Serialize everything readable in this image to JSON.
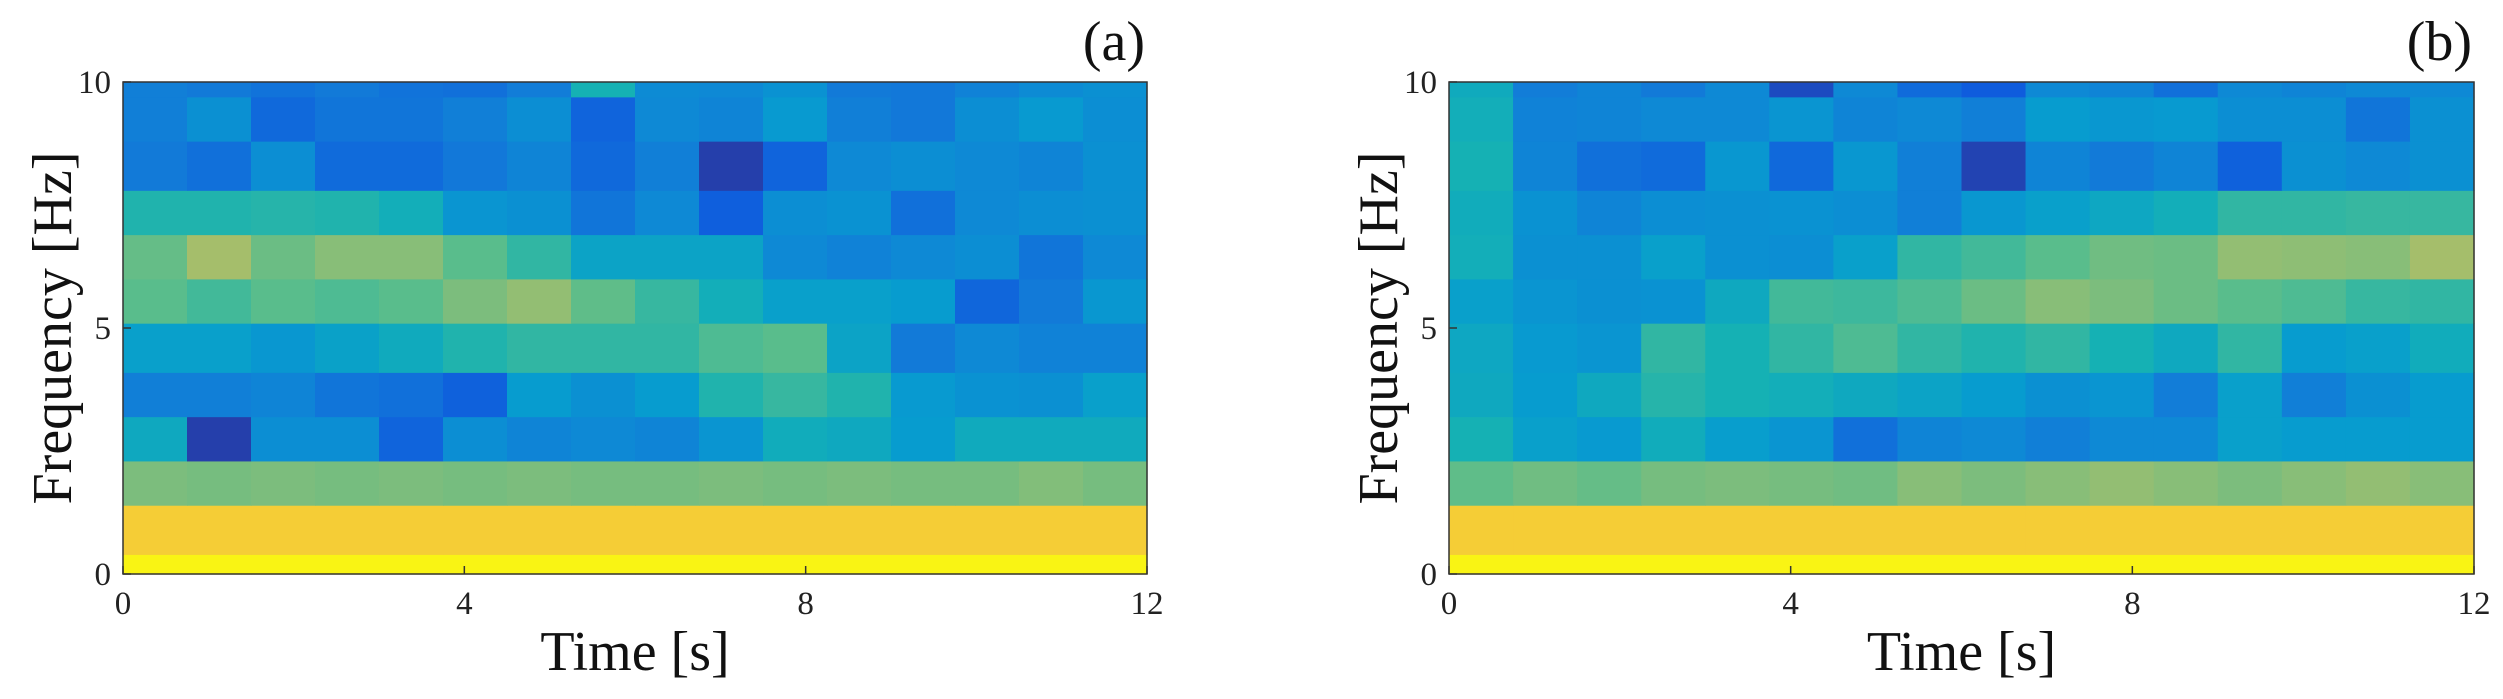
{
  "chart_data": [
    {
      "type": "heatmap",
      "panel_label": "(a)",
      "xlabel": "Time [s]",
      "ylabel": "Frequency [Hz]",
      "xlim": [
        0,
        12
      ],
      "ylim": [
        0,
        10
      ],
      "xticks": [
        "0",
        "4",
        "8",
        "12"
      ],
      "yticks": [
        "0",
        "5",
        "10"
      ],
      "colormap": "parula",
      "color_range": [
        0,
        1
      ],
      "freq_edges_hz": [
        0,
        0.4,
        1.4,
        2.3,
        3.2,
        4.1,
        5.1,
        6.0,
        6.9,
        7.8,
        8.8,
        9.7,
        10
      ],
      "time_bins": 16,
      "rows_low_to_high_freq": [
        [
          0.99,
          0.99,
          0.99,
          0.99,
          0.99,
          0.99,
          0.99,
          0.99,
          0.99,
          0.99,
          0.99,
          0.99,
          0.99,
          0.99,
          0.99,
          0.99
        ],
        [
          0.93,
          0.93,
          0.93,
          0.93,
          0.93,
          0.93,
          0.93,
          0.93,
          0.93,
          0.93,
          0.93,
          0.93,
          0.93,
          0.93,
          0.93,
          0.93
        ],
        [
          0.68,
          0.67,
          0.68,
          0.67,
          0.68,
          0.67,
          0.68,
          0.67,
          0.67,
          0.68,
          0.67,
          0.68,
          0.67,
          0.67,
          0.69,
          0.67
        ],
        [
          0.45,
          0.05,
          0.32,
          0.32,
          0.15,
          0.32,
          0.28,
          0.3,
          0.28,
          0.35,
          0.47,
          0.45,
          0.38,
          0.46,
          0.46,
          0.46
        ],
        [
          0.26,
          0.26,
          0.28,
          0.22,
          0.2,
          0.14,
          0.38,
          0.33,
          0.38,
          0.52,
          0.56,
          0.52,
          0.37,
          0.34,
          0.33,
          0.4
        ],
        [
          0.4,
          0.4,
          0.36,
          0.41,
          0.46,
          0.52,
          0.55,
          0.55,
          0.55,
          0.6,
          0.62,
          0.42,
          0.24,
          0.3,
          0.27,
          0.27
        ],
        [
          0.62,
          0.58,
          0.62,
          0.6,
          0.62,
          0.68,
          0.72,
          0.63,
          0.56,
          0.48,
          0.4,
          0.4,
          0.38,
          0.16,
          0.24,
          0.36
        ],
        [
          0.64,
          0.75,
          0.65,
          0.7,
          0.7,
          0.62,
          0.55,
          0.42,
          0.42,
          0.42,
          0.3,
          0.27,
          0.3,
          0.32,
          0.22,
          0.3
        ],
        [
          0.52,
          0.52,
          0.53,
          0.52,
          0.48,
          0.35,
          0.33,
          0.22,
          0.3,
          0.13,
          0.32,
          0.34,
          0.2,
          0.3,
          0.32,
          0.33
        ],
        [
          0.24,
          0.2,
          0.32,
          0.18,
          0.18,
          0.23,
          0.28,
          0.17,
          0.26,
          0.05,
          0.15,
          0.3,
          0.32,
          0.3,
          0.28,
          0.33
        ],
        [
          0.26,
          0.33,
          0.17,
          0.22,
          0.22,
          0.26,
          0.32,
          0.15,
          0.3,
          0.28,
          0.37,
          0.26,
          0.23,
          0.32,
          0.37,
          0.32
        ],
        [
          0.26,
          0.24,
          0.21,
          0.24,
          0.21,
          0.2,
          0.25,
          0.5,
          0.31,
          0.3,
          0.34,
          0.24,
          0.23,
          0.27,
          0.31,
          0.33
        ]
      ]
    },
    {
      "type": "heatmap",
      "panel_label": "(b)",
      "xlabel": "Time [s]",
      "ylabel": "Frequency [Hz]",
      "xlim": [
        0,
        12
      ],
      "ylim": [
        0,
        10
      ],
      "xticks": [
        "0",
        "4",
        "8",
        "12"
      ],
      "yticks": [
        "0",
        "5",
        "10"
      ],
      "colormap": "parula",
      "color_range": [
        0,
        1
      ],
      "freq_edges_hz": [
        0,
        0.4,
        1.4,
        2.3,
        3.2,
        4.1,
        5.1,
        6.0,
        6.9,
        7.8,
        8.8,
        9.7,
        10
      ],
      "time_bins": 16,
      "rows_low_to_high_freq": [
        [
          0.99,
          0.99,
          0.99,
          0.99,
          0.99,
          0.99,
          0.99,
          0.99,
          0.99,
          0.99,
          0.99,
          0.99,
          0.99,
          0.99,
          0.99,
          0.99
        ],
        [
          0.93,
          0.93,
          0.93,
          0.93,
          0.93,
          0.93,
          0.93,
          0.93,
          0.93,
          0.93,
          0.93,
          0.93,
          0.93,
          0.93,
          0.93,
          0.93
        ],
        [
          0.63,
          0.66,
          0.64,
          0.67,
          0.68,
          0.67,
          0.66,
          0.7,
          0.68,
          0.7,
          0.72,
          0.7,
          0.68,
          0.7,
          0.72,
          0.7
        ],
        [
          0.5,
          0.4,
          0.37,
          0.47,
          0.39,
          0.35,
          0.2,
          0.28,
          0.3,
          0.26,
          0.3,
          0.3,
          0.4,
          0.38,
          0.38,
          0.38
        ],
        [
          0.45,
          0.38,
          0.45,
          0.53,
          0.5,
          0.48,
          0.45,
          0.42,
          0.38,
          0.33,
          0.35,
          0.25,
          0.4,
          0.26,
          0.33,
          0.38
        ],
        [
          0.44,
          0.37,
          0.35,
          0.55,
          0.5,
          0.55,
          0.6,
          0.55,
          0.52,
          0.55,
          0.5,
          0.45,
          0.55,
          0.38,
          0.4,
          0.47
        ],
        [
          0.4,
          0.35,
          0.33,
          0.34,
          0.45,
          0.58,
          0.57,
          0.6,
          0.65,
          0.7,
          0.68,
          0.65,
          0.62,
          0.6,
          0.56,
          0.55
        ],
        [
          0.48,
          0.33,
          0.33,
          0.4,
          0.33,
          0.32,
          0.4,
          0.55,
          0.58,
          0.62,
          0.66,
          0.65,
          0.72,
          0.71,
          0.7,
          0.75
        ],
        [
          0.47,
          0.34,
          0.28,
          0.32,
          0.33,
          0.34,
          0.32,
          0.26,
          0.36,
          0.4,
          0.44,
          0.48,
          0.55,
          0.55,
          0.56,
          0.56
        ],
        [
          0.5,
          0.28,
          0.2,
          0.18,
          0.36,
          0.17,
          0.36,
          0.26,
          0.06,
          0.28,
          0.24,
          0.28,
          0.14,
          0.33,
          0.3,
          0.33
        ],
        [
          0.48,
          0.27,
          0.28,
          0.3,
          0.3,
          0.35,
          0.28,
          0.3,
          0.26,
          0.38,
          0.36,
          0.37,
          0.32,
          0.32,
          0.22,
          0.33
        ],
        [
          0.46,
          0.25,
          0.28,
          0.24,
          0.3,
          0.08,
          0.3,
          0.18,
          0.12,
          0.3,
          0.28,
          0.2,
          0.3,
          0.28,
          0.3,
          0.3
        ]
      ]
    }
  ]
}
